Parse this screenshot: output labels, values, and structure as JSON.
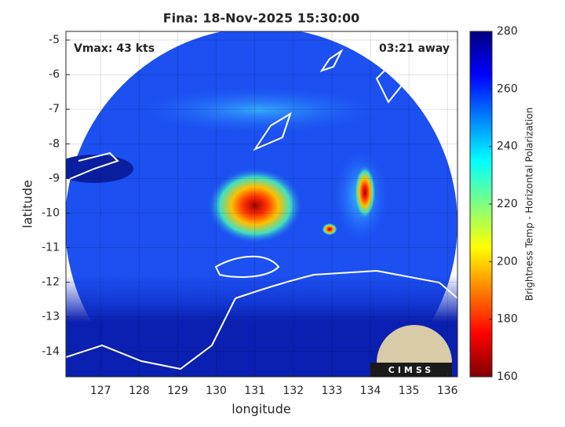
{
  "chart_data": {
    "type": "image",
    "title": "Fina: 18-Nov-2025 15:30:00",
    "annotations": [
      "Vmax: 43 kts",
      "03:21 away"
    ],
    "logo_text": "CIMSS",
    "xlabel": "longitude",
    "ylabel": "latitude",
    "xlim": [
      126.1,
      136.26
    ],
    "ylim": [
      -14.73,
      -4.75
    ],
    "xticks": [
      127,
      128,
      129,
      130,
      131,
      132,
      133,
      134,
      135,
      136
    ],
    "yticks": [
      -14,
      -13,
      -12,
      -11,
      -10,
      -9,
      -8,
      -7,
      -6,
      -5
    ],
    "grid": true,
    "colorbar": {
      "label": "Brightness Temp - Horizontal Polarization",
      "lim": [
        160,
        280
      ],
      "ticks": [
        160,
        180,
        200,
        220,
        240,
        260,
        280
      ],
      "colormap": [
        "#800000",
        "#ff0000",
        "#ff8000",
        "#ffff00",
        "#80ff80",
        "#00ffff",
        "#0080ff",
        "#0000ff",
        "#000080"
      ]
    }
  }
}
